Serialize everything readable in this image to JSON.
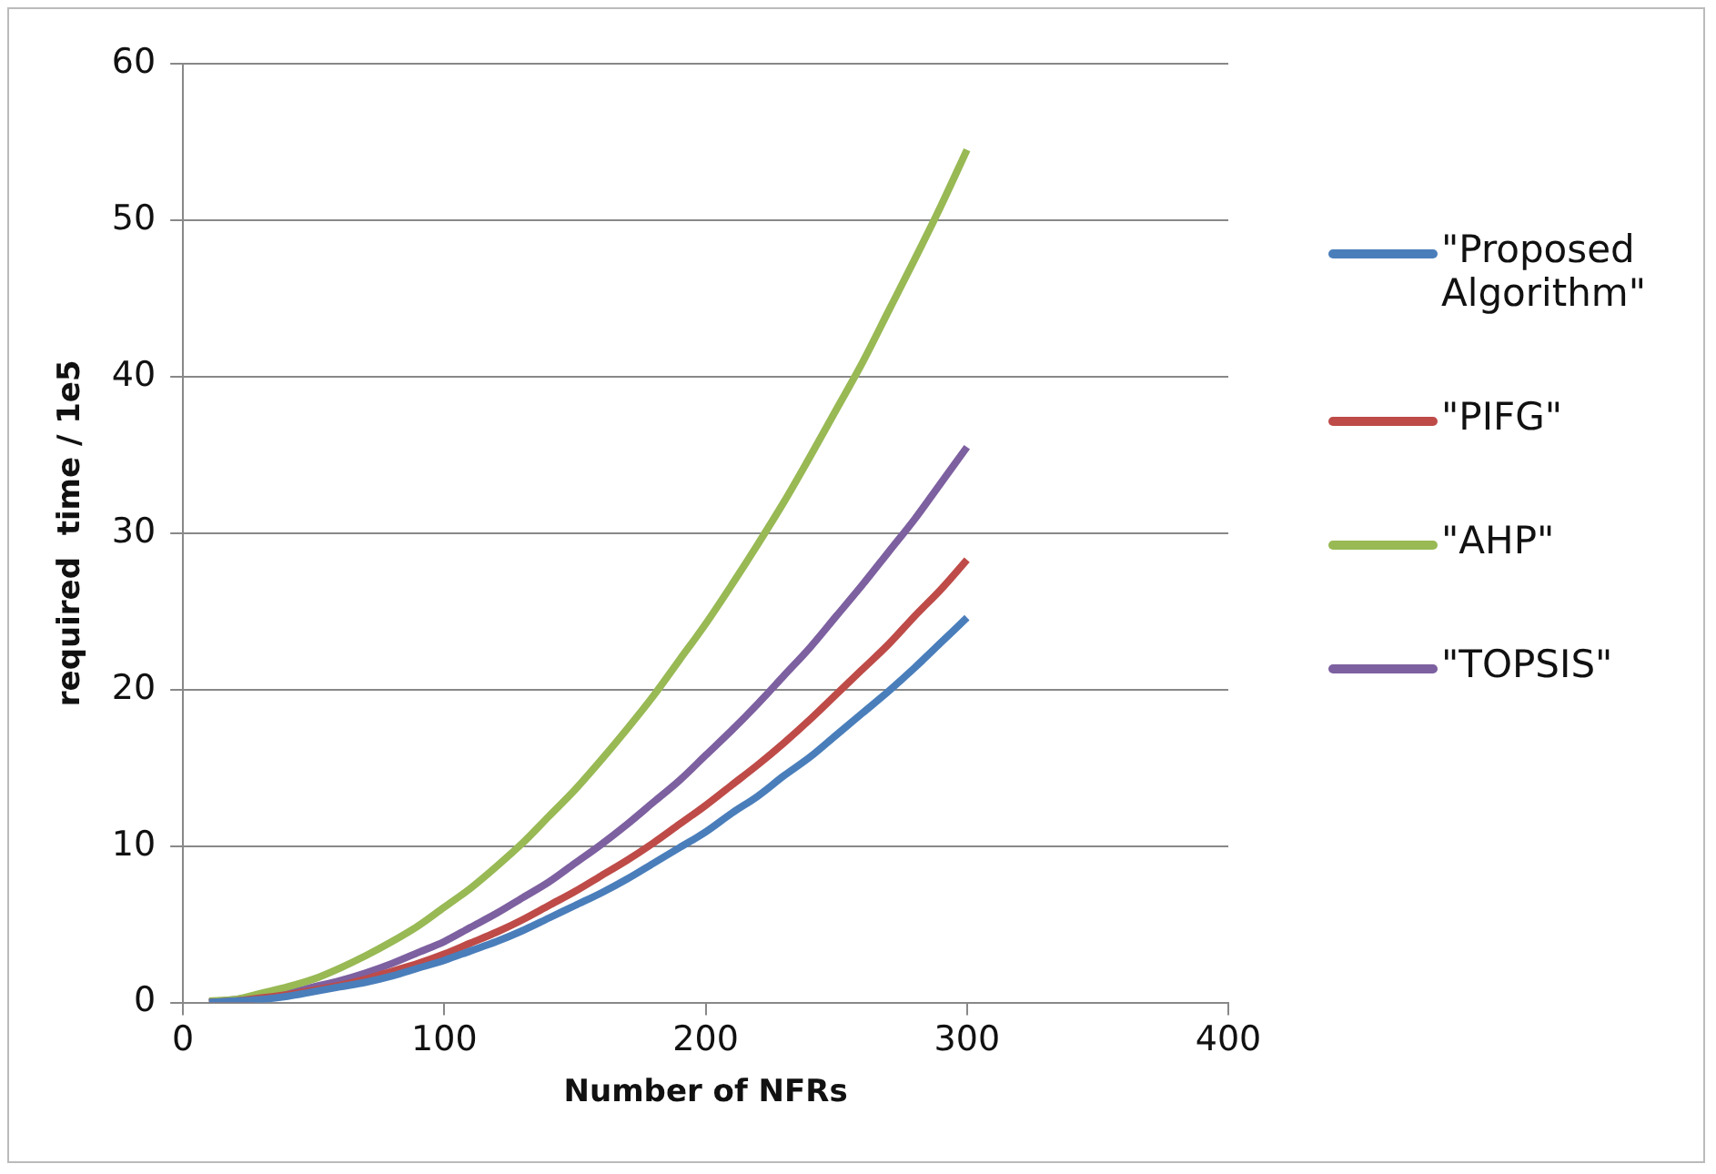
{
  "chart_data": {
    "type": "line",
    "xlabel": "Number of NFRs",
    "ylabel": "required  time / 1e5",
    "x": [
      10,
      20,
      30,
      40,
      50,
      60,
      70,
      80,
      90,
      100,
      110,
      120,
      130,
      140,
      150,
      160,
      170,
      180,
      190,
      200,
      210,
      220,
      230,
      240,
      250,
      260,
      270,
      280,
      290,
      300
    ],
    "series": [
      {
        "name": "\"Proposed Algorithm\"",
        "color": "#4a7ebb",
        "values": [
          0.0,
          0.1,
          0.2,
          0.4,
          0.7,
          1.0,
          1.3,
          1.7,
          2.2,
          2.7,
          3.3,
          3.9,
          4.6,
          5.4,
          6.2,
          7.0,
          7.9,
          8.9,
          9.9,
          10.9,
          12.1,
          13.2,
          14.5,
          15.7,
          17.1,
          18.5,
          19.9,
          21.4,
          23.0,
          24.6
        ]
      },
      {
        "name": "\"PIFG\"",
        "color": "#be4b48",
        "values": [
          0.0,
          0.1,
          0.3,
          0.5,
          0.8,
          1.1,
          1.5,
          2.0,
          2.5,
          3.1,
          3.8,
          4.5,
          5.3,
          6.2,
          7.1,
          8.1,
          9.1,
          10.2,
          11.4,
          12.6,
          13.9,
          15.2,
          16.6,
          18.1,
          19.7,
          21.3,
          22.9,
          24.7,
          26.4,
          28.3
        ]
      },
      {
        "name": "\"AHP\"",
        "color": "#98b954",
        "values": [
          0.1,
          0.2,
          0.6,
          1.0,
          1.5,
          2.2,
          3.0,
          3.9,
          4.9,
          6.1,
          7.3,
          8.7,
          10.2,
          11.9,
          13.6,
          15.5,
          17.5,
          19.6,
          21.9,
          24.2,
          26.7,
          29.3,
          32.0,
          34.9,
          37.9,
          40.9,
          44.2,
          47.5,
          50.9,
          54.5
        ]
      },
      {
        "name": "\"TOPSIS\"",
        "color": "#7d60a0",
        "values": [
          0.0,
          0.2,
          0.4,
          0.6,
          1.0,
          1.4,
          1.9,
          2.5,
          3.2,
          3.9,
          4.8,
          5.7,
          6.7,
          7.7,
          8.9,
          10.1,
          11.4,
          12.8,
          14.2,
          15.8,
          17.4,
          19.1,
          20.9,
          22.7,
          24.7,
          26.7,
          28.8,
          30.9,
          33.2,
          35.5
        ]
      }
    ],
    "xlim": [
      0,
      400
    ],
    "xticks": [
      0,
      100,
      200,
      300,
      400
    ],
    "ylim": [
      0,
      60
    ],
    "yticks": [
      0,
      10,
      20,
      30,
      40,
      50,
      60
    ],
    "grid": "y",
    "legend": "right"
  }
}
